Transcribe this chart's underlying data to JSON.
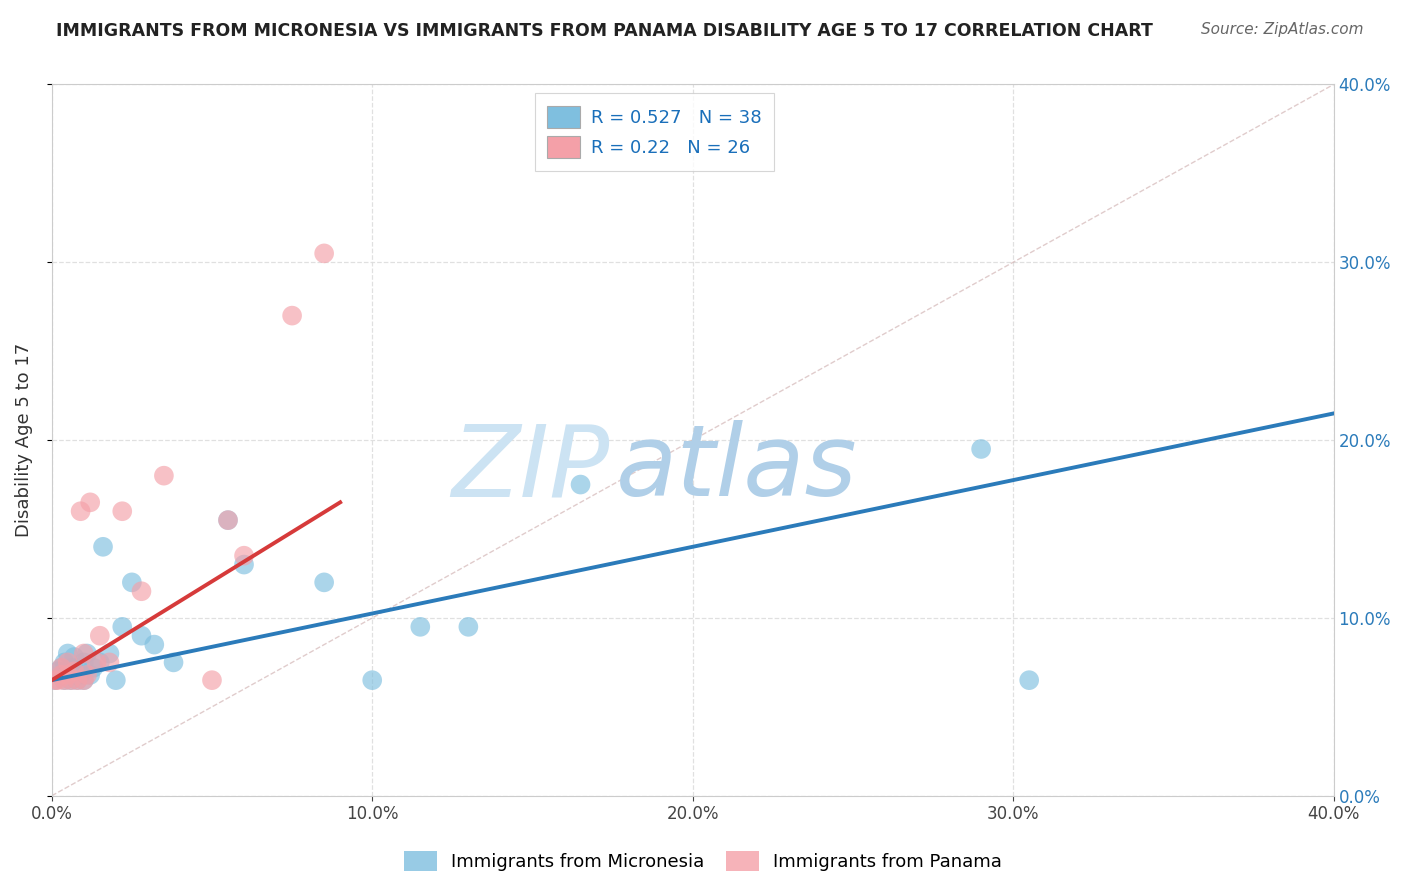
{
  "title": "IMMIGRANTS FROM MICRONESIA VS IMMIGRANTS FROM PANAMA DISABILITY AGE 5 TO 17 CORRELATION CHART",
  "source": "Source: ZipAtlas.com",
  "ylabel": "Disability Age 5 to 17",
  "xlim": [
    0,
    0.4
  ],
  "ylim": [
    0,
    0.4
  ],
  "legend_label1": "Immigrants from Micronesia",
  "legend_label2": "Immigrants from Panama",
  "R1": 0.527,
  "N1": 38,
  "R2": 0.22,
  "N2": 26,
  "color1": "#7fbfdf",
  "color2": "#f4a0a8",
  "trendline1_color": "#2b7bba",
  "trendline2_color": "#d63a3a",
  "watermark_zip_color": "#d0e8f5",
  "watermark_atlas_color": "#b8d8ee",
  "scatter1_x": [
    0.001,
    0.002,
    0.003,
    0.003,
    0.004,
    0.004,
    0.005,
    0.005,
    0.006,
    0.006,
    0.007,
    0.007,
    0.008,
    0.008,
    0.009,
    0.01,
    0.01,
    0.011,
    0.012,
    0.013,
    0.015,
    0.016,
    0.018,
    0.02,
    0.022,
    0.025,
    0.028,
    0.032,
    0.038,
    0.055,
    0.06,
    0.085,
    0.1,
    0.115,
    0.13,
    0.165,
    0.29,
    0.305
  ],
  "scatter1_y": [
    0.065,
    0.07,
    0.068,
    0.072,
    0.065,
    0.075,
    0.07,
    0.08,
    0.065,
    0.072,
    0.068,
    0.078,
    0.065,
    0.072,
    0.068,
    0.065,
    0.075,
    0.08,
    0.068,
    0.072,
    0.075,
    0.14,
    0.08,
    0.065,
    0.095,
    0.12,
    0.09,
    0.085,
    0.075,
    0.155,
    0.13,
    0.12,
    0.065,
    0.095,
    0.095,
    0.175,
    0.195,
    0.065
  ],
  "scatter2_x": [
    0.001,
    0.002,
    0.003,
    0.003,
    0.004,
    0.005,
    0.005,
    0.006,
    0.007,
    0.008,
    0.009,
    0.01,
    0.01,
    0.011,
    0.012,
    0.014,
    0.015,
    0.018,
    0.022,
    0.028,
    0.035,
    0.05,
    0.055,
    0.06,
    0.075,
    0.085
  ],
  "scatter2_y": [
    0.065,
    0.065,
    0.068,
    0.072,
    0.065,
    0.068,
    0.075,
    0.065,
    0.07,
    0.065,
    0.16,
    0.065,
    0.08,
    0.068,
    0.165,
    0.075,
    0.09,
    0.075,
    0.16,
    0.115,
    0.18,
    0.065,
    0.155,
    0.135,
    0.27,
    0.305
  ],
  "trendline1_x": [
    0.0,
    0.4
  ],
  "trendline1_y": [
    0.065,
    0.215
  ],
  "trendline2_x": [
    0.0,
    0.09
  ],
  "trendline2_y": [
    0.065,
    0.165
  ],
  "refline_x": [
    0.0,
    0.4
  ],
  "refline_y": [
    0.0,
    0.4
  ],
  "xtick_positions": [
    0.0,
    0.1,
    0.2,
    0.3,
    0.4
  ],
  "ytick_positions": [
    0.0,
    0.1,
    0.2,
    0.3,
    0.4
  ],
  "grid_color": "#dddddd",
  "spine_color": "#cccccc"
}
